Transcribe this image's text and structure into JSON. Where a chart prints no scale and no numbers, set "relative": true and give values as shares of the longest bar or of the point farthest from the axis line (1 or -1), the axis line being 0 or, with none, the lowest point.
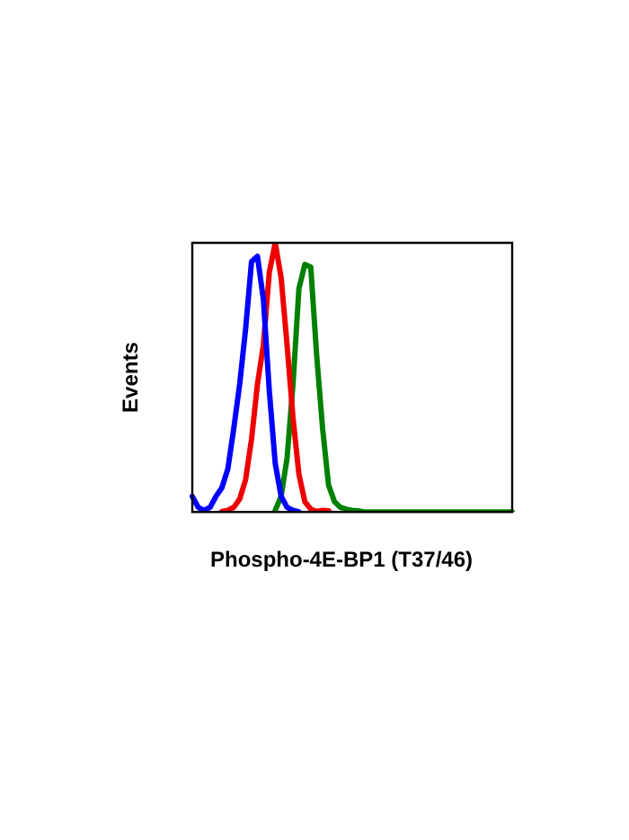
{
  "chart_data": {
    "type": "line",
    "xlabel": "Phospho-4E-BP1 (T37/46)",
    "ylabel": "Events",
    "relative": true,
    "grid": false,
    "legend": false,
    "marker": "none",
    "categories": [
      null,
      null,
      null,
      null,
      null,
      null,
      null,
      null,
      null,
      null,
      null,
      null,
      null,
      null,
      null,
      null,
      null,
      null,
      null,
      null,
      null,
      null,
      null,
      null,
      null,
      null,
      null,
      null,
      null,
      null,
      null,
      null,
      null,
      null,
      null,
      null,
      null,
      null,
      null,
      null,
      null,
      null,
      null,
      null,
      null,
      null,
      null,
      null,
      null,
      null,
      null,
      null,
      null,
      null,
      null
    ],
    "series": [
      {
        "color": "#0000ff",
        "values": [
          0.058,
          0.017,
          0.006,
          0.017,
          0.058,
          0.09,
          0.16,
          0.31,
          0.475,
          0.68,
          0.93,
          0.95,
          0.79,
          0.45,
          0.18,
          0.058,
          0.017,
          0.006,
          0,
          null,
          null,
          null,
          null,
          null,
          null,
          null,
          null,
          null,
          null,
          null,
          null,
          null,
          null,
          null,
          null,
          null,
          null,
          null,
          null,
          null,
          null,
          null,
          null,
          null,
          null,
          null,
          null,
          null,
          null,
          null,
          null,
          null,
          null,
          null,
          null
        ]
      },
      {
        "color": "#ee0000",
        "values": [
          null,
          null,
          null,
          null,
          null,
          0.002,
          0.006,
          0.017,
          0.048,
          0.12,
          0.27,
          0.475,
          0.62,
          0.89,
          1,
          0.87,
          0.62,
          0.35,
          0.14,
          0.038,
          0.01,
          0.002,
          0.006,
          0.004,
          null,
          null,
          null,
          null,
          null,
          null,
          null,
          null,
          null,
          null,
          null,
          null,
          null,
          null,
          null,
          null,
          null,
          null,
          null,
          null,
          null,
          null,
          null,
          null,
          null,
          null,
          null,
          null,
          null,
          null,
          null
        ]
      },
      {
        "color": "#008000",
        "values": [
          null,
          null,
          null,
          null,
          null,
          null,
          null,
          null,
          null,
          null,
          null,
          null,
          null,
          null,
          0.006,
          0.058,
          0.2,
          0.475,
          0.83,
          0.92,
          0.91,
          0.58,
          0.31,
          0.1,
          0.038,
          0.017,
          0.01,
          0.006,
          0.004,
          0,
          0,
          0,
          0,
          0,
          0,
          0,
          0,
          0,
          0,
          0,
          0,
          0,
          0,
          0,
          0,
          0,
          0,
          0,
          0,
          0,
          0,
          0,
          0,
          0,
          0
        ]
      }
    ]
  }
}
